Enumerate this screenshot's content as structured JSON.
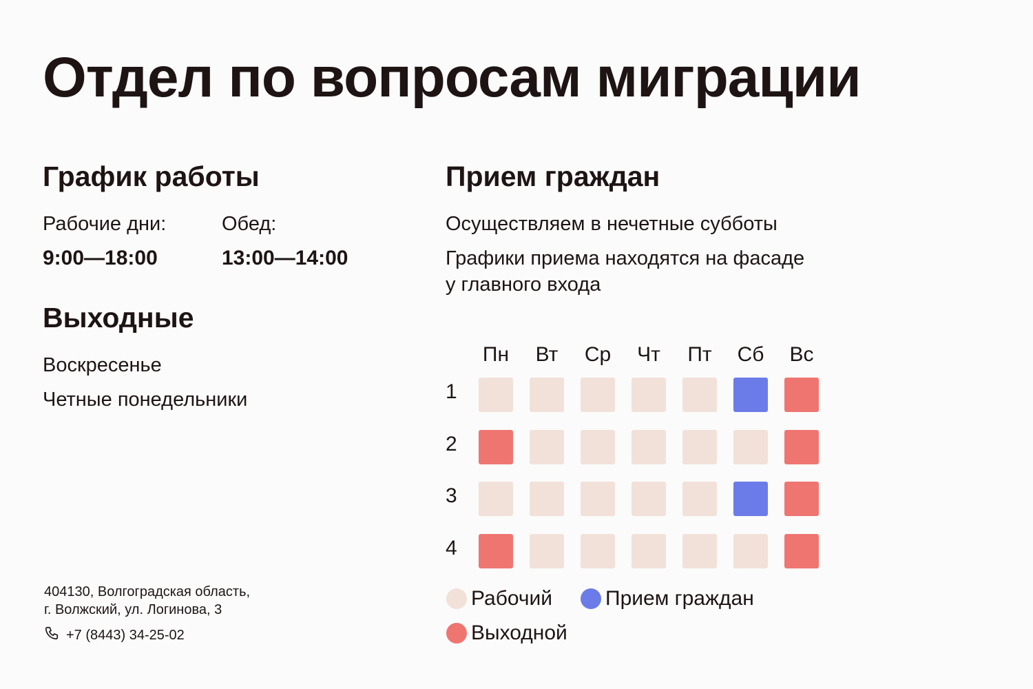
{
  "title": "Отдел по вопросам миграции",
  "work_schedule": {
    "heading": "График работы",
    "workdays_label": "Рабочие дни:",
    "workdays_hours": "9:00—18:00",
    "lunch_label": "Обед:",
    "lunch_hours": "13:00—14:00"
  },
  "days_off": {
    "heading": "Выходные",
    "items": [
      "Воскресенье",
      "Четные понедельники"
    ]
  },
  "contact": {
    "address_line1": "404130, Волгоградская область,",
    "address_line2": "г. Волжский, ул. Логинова, 3",
    "phone": "+7 (8443) 34-25-02",
    "phone_icon": "phone-icon"
  },
  "reception": {
    "heading": "Прием граждан",
    "line1": "Осуществляем в нечетные субботы",
    "line2a": "Графики приема находятся на фасаде",
    "line2b": "у главного входа"
  },
  "calendar": {
    "days": [
      "Пн",
      "Вт",
      "Ср",
      "Чт",
      "Пт",
      "Сб",
      "Вс"
    ],
    "weeks": [
      "1",
      "2",
      "3",
      "4"
    ],
    "grid": [
      [
        "work",
        "work",
        "work",
        "work",
        "work",
        "reception",
        "off"
      ],
      [
        "off",
        "work",
        "work",
        "work",
        "work",
        "work",
        "off"
      ],
      [
        "work",
        "work",
        "work",
        "work",
        "work",
        "reception",
        "off"
      ],
      [
        "off",
        "work",
        "work",
        "work",
        "work",
        "work",
        "off"
      ]
    ]
  },
  "legend": {
    "work": "Рабочий",
    "reception": "Прием граждан",
    "off": "Выходной"
  },
  "colors": {
    "work": "#f2e1d8",
    "reception": "#6b7ce8",
    "off": "#ef7570",
    "text": "#1e1414",
    "background": "#fbfbfb"
  }
}
